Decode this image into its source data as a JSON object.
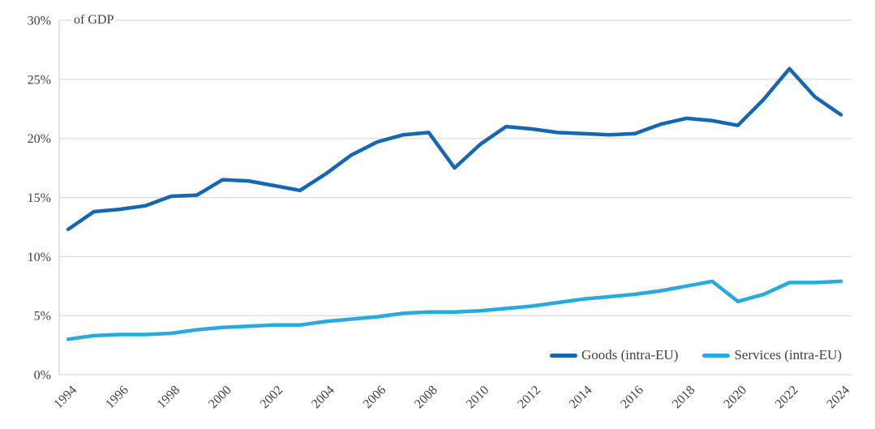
{
  "chart_data": {
    "type": "line",
    "unit_label": "of GDP",
    "years": [
      1994,
      1995,
      1996,
      1997,
      1998,
      1999,
      2000,
      2001,
      2002,
      2003,
      2004,
      2005,
      2006,
      2007,
      2008,
      2009,
      2010,
      2011,
      2012,
      2013,
      2014,
      2015,
      2016,
      2017,
      2018,
      2019,
      2020,
      2021,
      2022,
      2023,
      2024
    ],
    "x_tick_years": [
      1994,
      1996,
      1998,
      2000,
      2002,
      2004,
      2006,
      2008,
      2010,
      2012,
      2014,
      2016,
      2018,
      2020,
      2022,
      2024
    ],
    "y_ticks": [
      0,
      5,
      10,
      15,
      20,
      25,
      30
    ],
    "y_tick_suffix": "%",
    "ylim": [
      0,
      30
    ],
    "grid": true,
    "legend_position": "bottom-right-inside",
    "series": [
      {
        "name": "Goods (intra-EU)",
        "color": "#1667b1",
        "values": [
          12.3,
          13.8,
          14.0,
          14.3,
          15.1,
          15.2,
          16.5,
          16.4,
          16.0,
          15.6,
          17.0,
          18.6,
          19.7,
          20.3,
          20.5,
          17.5,
          19.5,
          21.0,
          20.8,
          20.5,
          20.4,
          20.3,
          20.4,
          21.2,
          21.7,
          21.5,
          21.1,
          23.3,
          25.9,
          23.5,
          22.0
        ]
      },
      {
        "name": "Services (intra-EU)",
        "color": "#29a9dd",
        "values": [
          3.0,
          3.3,
          3.4,
          3.4,
          3.5,
          3.8,
          4.0,
          4.1,
          4.2,
          4.2,
          4.5,
          4.7,
          4.9,
          5.2,
          5.3,
          5.3,
          5.4,
          5.6,
          5.8,
          6.1,
          6.4,
          6.6,
          6.8,
          7.1,
          7.5,
          7.9,
          6.2,
          6.8,
          7.8,
          7.8,
          7.9
        ]
      }
    ],
    "colors": {
      "grid": "#d9d9d9",
      "axis": "#d0d0d0",
      "text": "#404040",
      "background": "#ffffff"
    }
  }
}
